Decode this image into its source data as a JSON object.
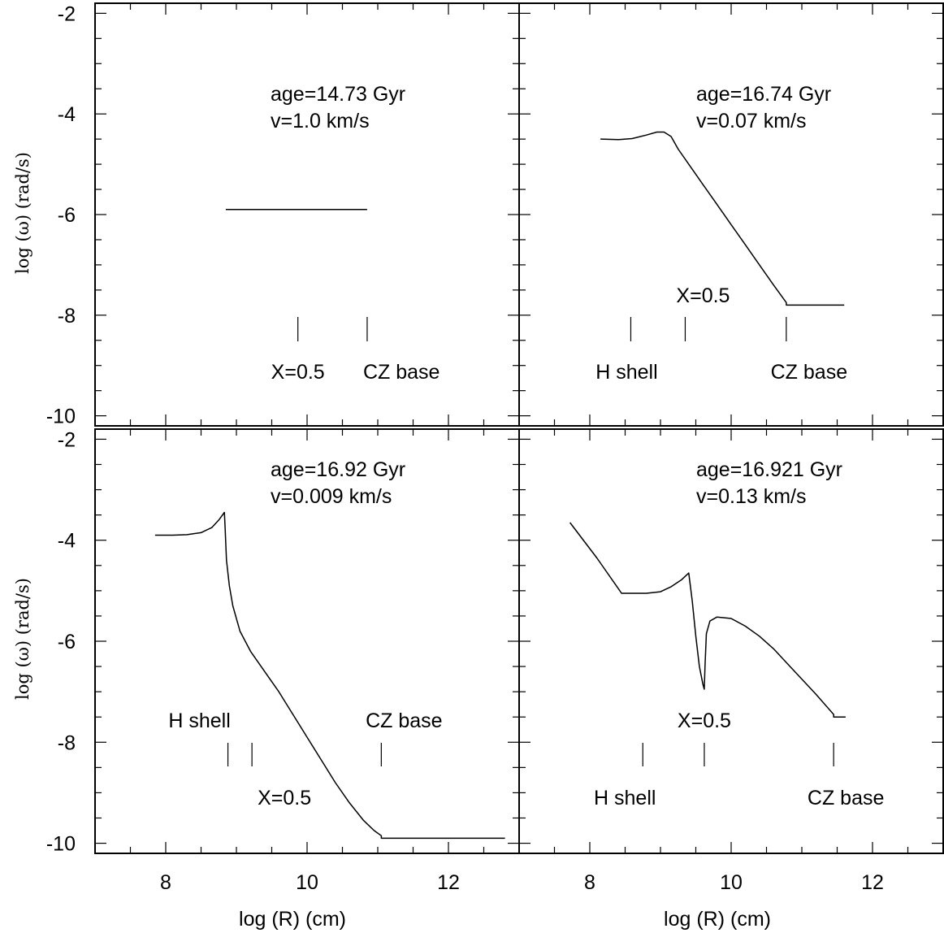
{
  "chart_data": [
    {
      "panel": "top-left",
      "type": "line",
      "xlabel": "",
      "ylabel": "log (ω) (rad/s)",
      "xlim": [
        7,
        13
      ],
      "ylim": [
        -10.2,
        -1.8
      ],
      "y_ticks": [
        -2,
        -4,
        -6,
        -8,
        -10
      ],
      "x_ticks": [],
      "annotations": [
        "age=14.73 Gyr",
        "v=1.0 km/s"
      ],
      "series": [
        {
          "x": [
            8.85,
            10.85
          ],
          "y": [
            -5.9,
            -5.9
          ]
        }
      ],
      "markers": [
        {
          "x": 9.87,
          "label": "X=0.5"
        },
        {
          "x": 10.85,
          "label": "CZ base"
        }
      ]
    },
    {
      "panel": "top-right",
      "type": "line",
      "xlabel": "",
      "ylabel": "",
      "xlim": [
        7,
        13
      ],
      "ylim": [
        -10.2,
        -1.8
      ],
      "y_ticks": [],
      "x_ticks": [],
      "annotations": [
        "age=16.74 Gyr",
        "v=0.07 km/s"
      ],
      "series": [
        {
          "x": [
            8.15,
            8.4,
            8.6,
            8.8,
            8.95,
            9.05,
            9.15,
            9.25,
            9.4,
            9.6,
            9.8,
            10.0,
            10.2,
            10.4,
            10.6,
            10.78,
            10.78,
            11.6
          ],
          "y": [
            -4.5,
            -4.51,
            -4.49,
            -4.42,
            -4.36,
            -4.36,
            -4.45,
            -4.7,
            -5.0,
            -5.4,
            -5.8,
            -6.2,
            -6.6,
            -7.0,
            -7.4,
            -7.75,
            -7.8,
            -7.8
          ]
        }
      ],
      "markers": [
        {
          "x": 8.58,
          "label": "H shell"
        },
        {
          "x": 9.35,
          "label": "X=0.5"
        },
        {
          "x": 10.78,
          "label": "CZ base"
        }
      ]
    },
    {
      "panel": "bottom-left",
      "type": "line",
      "xlabel": "log (R) (cm)",
      "ylabel": "log (ω) (rad/s)",
      "xlim": [
        7,
        13
      ],
      "ylim": [
        -10.2,
        -1.8
      ],
      "y_ticks": [
        -2,
        -4,
        -6,
        -8,
        -10
      ],
      "x_ticks": [
        8,
        10,
        12
      ],
      "annotations": [
        "age=16.92 Gyr",
        "v=0.009 km/s"
      ],
      "series": [
        {
          "x": [
            7.85,
            8.1,
            8.3,
            8.5,
            8.65,
            8.75,
            8.83,
            8.84,
            8.86,
            8.9,
            8.95,
            9.05,
            9.2,
            9.4,
            9.6,
            9.8,
            10.0,
            10.2,
            10.4,
            10.6,
            10.8,
            10.95,
            11.05,
            11.05,
            12.8
          ],
          "y": [
            -3.9,
            -3.9,
            -3.89,
            -3.85,
            -3.75,
            -3.6,
            -3.45,
            -3.75,
            -4.4,
            -4.9,
            -5.3,
            -5.8,
            -6.2,
            -6.6,
            -7.0,
            -7.45,
            -7.9,
            -8.35,
            -8.8,
            -9.2,
            -9.55,
            -9.75,
            -9.85,
            -9.9,
            -9.9
          ]
        }
      ],
      "markers": [
        {
          "x": 8.88,
          "label": "H shell"
        },
        {
          "x": 9.22,
          "label": "X=0.5"
        },
        {
          "x": 11.05,
          "label": "CZ base"
        }
      ]
    },
    {
      "panel": "bottom-right",
      "type": "line",
      "xlabel": "log (R) (cm)",
      "ylabel": "",
      "xlim": [
        7,
        13
      ],
      "ylim": [
        -10.2,
        -1.8
      ],
      "y_ticks": [],
      "x_ticks": [
        8,
        10,
        12
      ],
      "annotations": [
        "age=16.921 Gyr",
        "v=0.13 km/s"
      ],
      "series": [
        {
          "x": [
            7.72,
            8.1,
            8.45,
            8.8,
            9.0,
            9.15,
            9.3,
            9.4,
            9.45,
            9.5,
            9.55,
            9.6,
            9.62,
            9.63,
            9.65,
            9.7,
            9.8,
            10.0,
            10.2,
            10.4,
            10.6,
            10.8,
            11.0,
            11.2,
            11.45,
            11.45,
            11.62
          ],
          "y": [
            -3.65,
            -4.35,
            -5.05,
            -5.05,
            -5.02,
            -4.92,
            -4.78,
            -4.65,
            -5.2,
            -5.9,
            -6.5,
            -6.85,
            -6.95,
            -6.5,
            -5.85,
            -5.6,
            -5.52,
            -5.55,
            -5.7,
            -5.9,
            -6.15,
            -6.45,
            -6.75,
            -7.05,
            -7.45,
            -7.5,
            -7.5
          ]
        }
      ],
      "markers": [
        {
          "x": 8.75,
          "label": "H shell"
        },
        {
          "x": 9.62,
          "label": "X=0.5"
        },
        {
          "x": 11.45,
          "label": "CZ base"
        }
      ]
    }
  ]
}
